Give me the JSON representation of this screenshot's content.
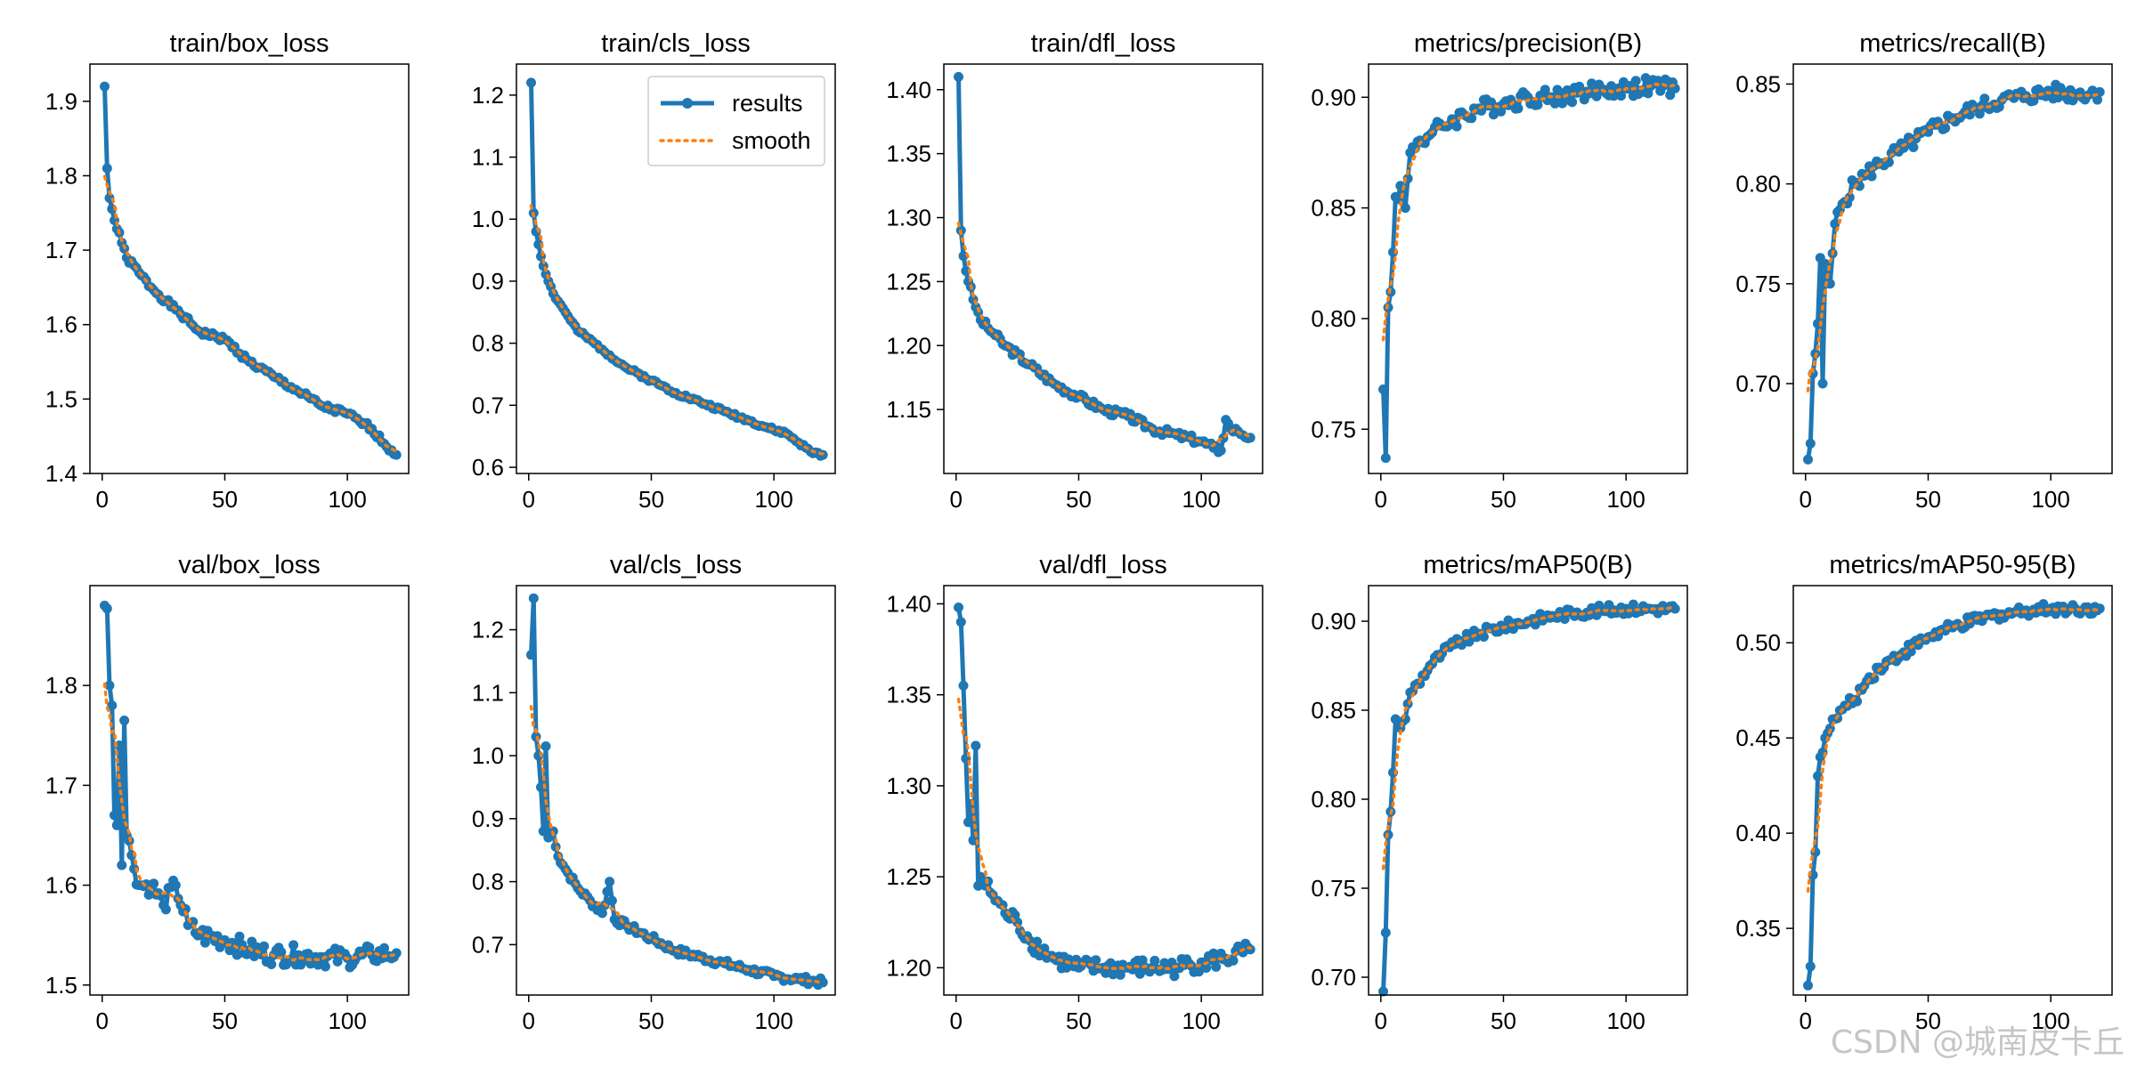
{
  "watermark": "CSDN @城南皮卡丘",
  "legend": {
    "results": "results",
    "smooth": "smooth"
  },
  "colors": {
    "results": "#1f77b4",
    "smooth": "#ff7f0e"
  },
  "chart_data": [
    {
      "type": "line",
      "title": "train/box_loss",
      "xlim": [
        -5,
        125
      ],
      "ylim": [
        1.4,
        1.95
      ],
      "xticks": [
        0,
        50,
        100
      ],
      "yticks": [
        1.4,
        1.5,
        1.6,
        1.7,
        1.8,
        1.9
      ],
      "ytick_labels": [
        "1.4",
        "1.5",
        "1.6",
        "1.7",
        "1.8",
        "1.9"
      ],
      "anchors_x": [
        1,
        2,
        3,
        5,
        8,
        10,
        15,
        20,
        30,
        40,
        50,
        60,
        70,
        80,
        90,
        100,
        105,
        110,
        115,
        120
      ],
      "anchors_y": [
        1.92,
        1.81,
        1.77,
        1.74,
        1.71,
        1.69,
        1.67,
        1.65,
        1.62,
        1.59,
        1.58,
        1.55,
        1.53,
        1.51,
        1.49,
        1.48,
        1.47,
        1.46,
        1.44,
        1.425
      ],
      "noise": 0.004,
      "seed": 1
    },
    {
      "type": "line",
      "title": "train/cls_loss",
      "xlim": [
        -5,
        125
      ],
      "ylim": [
        0.59,
        1.25
      ],
      "xticks": [
        0,
        50,
        100
      ],
      "yticks": [
        0.6,
        0.7,
        0.8,
        0.9,
        1.0,
        1.1,
        1.2
      ],
      "ytick_labels": [
        "0.6",
        "0.7",
        "0.8",
        "0.9",
        "1.0",
        "1.1",
        "1.2"
      ],
      "anchors_x": [
        1,
        2,
        3,
        5,
        8,
        10,
        15,
        20,
        30,
        40,
        50,
        60,
        70,
        80,
        90,
        100,
        105,
        110,
        115,
        120
      ],
      "anchors_y": [
        1.22,
        1.01,
        0.98,
        0.94,
        0.9,
        0.88,
        0.85,
        0.82,
        0.79,
        0.76,
        0.74,
        0.72,
        0.705,
        0.69,
        0.675,
        0.66,
        0.655,
        0.64,
        0.625,
        0.62
      ],
      "noise": 0.003,
      "seed": 2,
      "legend": true
    },
    {
      "type": "line",
      "title": "train/dfl_loss",
      "xlim": [
        -5,
        125
      ],
      "ylim": [
        1.1,
        1.42
      ],
      "xticks": [
        0,
        50,
        100
      ],
      "yticks": [
        1.15,
        1.2,
        1.25,
        1.3,
        1.35,
        1.4
      ],
      "ytick_labels": [
        "1.15",
        "1.20",
        "1.25",
        "1.30",
        "1.35",
        "1.40"
      ],
      "anchors_x": [
        1,
        2,
        3,
        5,
        8,
        10,
        15,
        20,
        30,
        40,
        50,
        60,
        70,
        80,
        90,
        100,
        105,
        108,
        110,
        112,
        115,
        120
      ],
      "anchors_y": [
        1.41,
        1.29,
        1.27,
        1.25,
        1.23,
        1.22,
        1.21,
        1.2,
        1.185,
        1.17,
        1.16,
        1.15,
        1.145,
        1.135,
        1.13,
        1.125,
        1.12,
        1.118,
        1.142,
        1.135,
        1.133,
        1.128
      ],
      "noise": 0.003,
      "seed": 3
    },
    {
      "type": "line",
      "title": "metrics/precision(B)",
      "xlim": [
        -5,
        125
      ],
      "ylim": [
        0.73,
        0.915
      ],
      "xticks": [
        0,
        50,
        100
      ],
      "yticks": [
        0.75,
        0.8,
        0.85,
        0.9
      ],
      "ytick_labels": [
        "0.75",
        "0.80",
        "0.85",
        "0.90"
      ],
      "anchors_x": [
        1,
        2,
        3,
        4,
        5,
        6,
        8,
        10,
        12,
        15,
        20,
        25,
        30,
        40,
        50,
        60,
        70,
        80,
        90,
        100,
        110,
        120
      ],
      "anchors_y": [
        0.768,
        0.737,
        0.805,
        0.812,
        0.83,
        0.855,
        0.86,
        0.85,
        0.875,
        0.88,
        0.883,
        0.887,
        0.89,
        0.895,
        0.897,
        0.9,
        0.9,
        0.902,
        0.903,
        0.904,
        0.905,
        0.904
      ],
      "noise": 0.004,
      "seed": 4
    },
    {
      "type": "line",
      "title": "metrics/recall(B)",
      "xlim": [
        -5,
        125
      ],
      "ylim": [
        0.655,
        0.86
      ],
      "xticks": [
        0,
        50,
        100
      ],
      "yticks": [
        0.7,
        0.75,
        0.8,
        0.85
      ],
      "ytick_labels": [
        "0.70",
        "0.75",
        "0.80",
        "0.85"
      ],
      "anchors_x": [
        1,
        2,
        3,
        4,
        5,
        6,
        7,
        8,
        10,
        12,
        15,
        20,
        25,
        30,
        40,
        50,
        60,
        70,
        80,
        90,
        100,
        110,
        120
      ],
      "anchors_y": [
        0.662,
        0.67,
        0.705,
        0.715,
        0.73,
        0.763,
        0.7,
        0.76,
        0.75,
        0.78,
        0.79,
        0.8,
        0.805,
        0.81,
        0.818,
        0.826,
        0.833,
        0.838,
        0.842,
        0.844,
        0.846,
        0.845,
        0.846
      ],
      "noise": 0.004,
      "seed": 5
    },
    {
      "type": "line",
      "title": "val/box_loss",
      "xlim": [
        -5,
        125
      ],
      "ylim": [
        1.49,
        1.9
      ],
      "xticks": [
        0,
        50,
        100
      ],
      "yticks": [
        1.5,
        1.6,
        1.7,
        1.8
      ],
      "ytick_labels": [
        "1.5",
        "1.6",
        "1.7",
        "1.8"
      ],
      "anchors_x": [
        1,
        2,
        3,
        4,
        5,
        6,
        7,
        8,
        9,
        10,
        12,
        15,
        20,
        25,
        30,
        35,
        40,
        50,
        60,
        70,
        80,
        90,
        100,
        110,
        120
      ],
      "anchors_y": [
        1.88,
        1.877,
        1.8,
        1.78,
        1.67,
        1.66,
        1.74,
        1.62,
        1.765,
        1.65,
        1.63,
        1.6,
        1.6,
        1.58,
        1.6,
        1.56,
        1.55,
        1.545,
        1.535,
        1.53,
        1.53,
        1.528,
        1.527,
        1.53,
        1.532
      ],
      "noise": 0.01,
      "seed": 6
    },
    {
      "type": "line",
      "title": "val/cls_loss",
      "xlim": [
        -5,
        125
      ],
      "ylim": [
        0.62,
        1.27
      ],
      "xticks": [
        0,
        50,
        100
      ],
      "yticks": [
        0.7,
        0.8,
        0.9,
        1.0,
        1.1,
        1.2
      ],
      "ytick_labels": [
        "0.7",
        "0.8",
        "0.9",
        "1.0",
        "1.1",
        "1.2"
      ],
      "anchors_x": [
        1,
        2,
        3,
        4,
        5,
        6,
        7,
        8,
        10,
        12,
        15,
        20,
        25,
        30,
        33,
        35,
        40,
        50,
        60,
        70,
        80,
        90,
        100,
        110,
        120
      ],
      "anchors_y": [
        1.16,
        1.25,
        1.03,
        1.0,
        0.95,
        0.88,
        1.015,
        0.87,
        0.88,
        0.84,
        0.82,
        0.79,
        0.77,
        0.75,
        0.8,
        0.74,
        0.73,
        0.71,
        0.69,
        0.68,
        0.67,
        0.66,
        0.65,
        0.645,
        0.64
      ],
      "noise": 0.006,
      "seed": 7
    },
    {
      "type": "line",
      "title": "val/dfl_loss",
      "xlim": [
        -5,
        125
      ],
      "ylim": [
        1.185,
        1.41
      ],
      "xticks": [
        0,
        50,
        100
      ],
      "yticks": [
        1.2,
        1.25,
        1.3,
        1.35,
        1.4
      ],
      "ytick_labels": [
        "1.20",
        "1.25",
        "1.30",
        "1.35",
        "1.40"
      ],
      "anchors_x": [
        1,
        2,
        3,
        4,
        5,
        6,
        7,
        8,
        9,
        10,
        12,
        15,
        20,
        25,
        30,
        35,
        40,
        50,
        60,
        70,
        80,
        90,
        100,
        110,
        120
      ],
      "anchors_y": [
        1.398,
        1.39,
        1.355,
        1.315,
        1.28,
        1.29,
        1.27,
        1.322,
        1.245,
        1.25,
        1.245,
        1.24,
        1.23,
        1.225,
        1.215,
        1.21,
        1.205,
        1.2,
        1.2,
        1.2,
        1.2,
        1.2,
        1.203,
        1.205,
        1.21
      ],
      "noise": 0.005,
      "seed": 8
    },
    {
      "type": "line",
      "title": "metrics/mAP50(B)",
      "xlim": [
        -5,
        125
      ],
      "ylim": [
        0.69,
        0.92
      ],
      "xticks": [
        0,
        50,
        100
      ],
      "yticks": [
        0.7,
        0.75,
        0.8,
        0.85,
        0.9
      ],
      "ytick_labels": [
        "0.70",
        "0.75",
        "0.80",
        "0.85",
        "0.90"
      ],
      "anchors_x": [
        1,
        2,
        3,
        4,
        5,
        6,
        8,
        10,
        12,
        15,
        20,
        25,
        30,
        40,
        50,
        60,
        70,
        80,
        90,
        100,
        110,
        120
      ],
      "anchors_y": [
        0.692,
        0.725,
        0.78,
        0.793,
        0.815,
        0.845,
        0.84,
        0.845,
        0.86,
        0.865,
        0.875,
        0.882,
        0.887,
        0.893,
        0.897,
        0.9,
        0.903,
        0.905,
        0.906,
        0.907,
        0.907,
        0.907
      ],
      "noise": 0.003,
      "seed": 9
    },
    {
      "type": "line",
      "title": "metrics/mAP50-95(B)",
      "xlim": [
        -5,
        125
      ],
      "ylim": [
        0.315,
        0.53
      ],
      "xticks": [
        0,
        50,
        100
      ],
      "yticks": [
        0.35,
        0.4,
        0.45,
        0.5
      ],
      "ytick_labels": [
        "0.35",
        "0.40",
        "0.45",
        "0.50"
      ],
      "anchors_x": [
        1,
        2,
        3,
        4,
        5,
        6,
        8,
        10,
        12,
        15,
        20,
        25,
        30,
        40,
        50,
        60,
        70,
        80,
        90,
        100,
        110,
        120
      ],
      "anchors_y": [
        0.32,
        0.33,
        0.378,
        0.39,
        0.43,
        0.44,
        0.45,
        0.455,
        0.46,
        0.465,
        0.47,
        0.48,
        0.487,
        0.495,
        0.503,
        0.508,
        0.512,
        0.515,
        0.517,
        0.518,
        0.518,
        0.518
      ],
      "noise": 0.003,
      "seed": 10
    }
  ]
}
